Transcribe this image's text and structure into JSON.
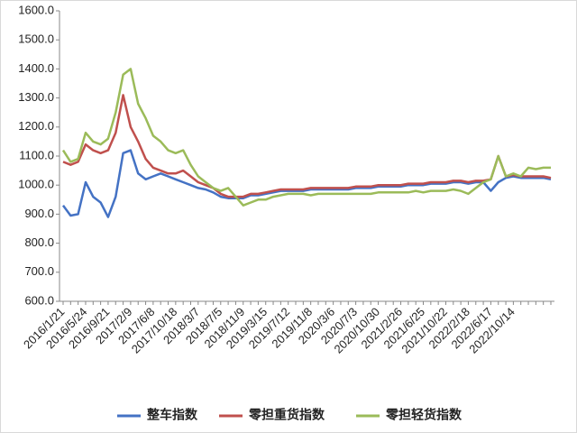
{
  "chart_data": {
    "type": "line",
    "categories": [
      "2016/1/21",
      null,
      null,
      "2016/5/24",
      null,
      null,
      "2016/9/21",
      null,
      null,
      "2017/2/9",
      null,
      null,
      "2017/6/8",
      null,
      null,
      "2017/10/18",
      null,
      null,
      "2018/3/7",
      null,
      null,
      "2018/7/5",
      null,
      null,
      "2018/11/9",
      null,
      null,
      "2019/3/15",
      null,
      null,
      "2019/7/12",
      null,
      null,
      "2019/11/8",
      null,
      null,
      "2020/3/6",
      null,
      null,
      "2020/7/3",
      null,
      null,
      "2020/10/30",
      null,
      null,
      "2021/2/26",
      null,
      null,
      "2021/6/25",
      null,
      null,
      "2021/10/22",
      null,
      null,
      "2022/2/18",
      null,
      null,
      "2022/6/17",
      null,
      null,
      "2022/10/14",
      null,
      null,
      null,
      null,
      null
    ],
    "series": [
      {
        "name": "整车指数",
        "color": "#4472c4",
        "values": [
          930,
          895,
          900,
          1010,
          960,
          940,
          890,
          960,
          1110,
          1120,
          1040,
          1020,
          1030,
          1040,
          1030,
          1020,
          1010,
          1000,
          990,
          985,
          975,
          960,
          955,
          955,
          955,
          965,
          965,
          970,
          975,
          980,
          980,
          980,
          980,
          985,
          985,
          985,
          985,
          985,
          985,
          990,
          990,
          990,
          995,
          995,
          995,
          995,
          1000,
          1000,
          1000,
          1005,
          1005,
          1005,
          1010,
          1010,
          1005,
          1010,
          1010,
          980,
          1010,
          1025,
          1030,
          1025,
          1025,
          1025,
          1025,
          1020
        ]
      },
      {
        "name": "零担重货指数",
        "color": "#c0504d",
        "values": [
          1080,
          1070,
          1080,
          1140,
          1120,
          1110,
          1120,
          1180,
          1310,
          1200,
          1150,
          1090,
          1060,
          1050,
          1040,
          1040,
          1050,
          1030,
          1010,
          1000,
          990,
          970,
          960,
          960,
          960,
          970,
          970,
          975,
          980,
          985,
          985,
          985,
          985,
          990,
          990,
          990,
          990,
          990,
          990,
          995,
          995,
          995,
          1000,
          1000,
          1000,
          1000,
          1005,
          1005,
          1005,
          1010,
          1010,
          1010,
          1015,
          1015,
          1010,
          1015,
          1015,
          1020,
          1100,
          1030,
          1035,
          1030,
          1030,
          1030,
          1030,
          1025
        ]
      },
      {
        "name": "零担轻货指数",
        "color": "#9bbb59",
        "values": [
          1120,
          1080,
          1090,
          1180,
          1150,
          1140,
          1160,
          1250,
          1380,
          1400,
          1280,
          1230,
          1170,
          1150,
          1120,
          1110,
          1120,
          1070,
          1030,
          1010,
          990,
          980,
          990,
          960,
          930,
          940,
          950,
          950,
          960,
          965,
          970,
          970,
          970,
          965,
          970,
          970,
          970,
          970,
          970,
          970,
          970,
          970,
          975,
          975,
          975,
          975,
          975,
          980,
          975,
          980,
          980,
          980,
          985,
          980,
          970,
          990,
          1010,
          1020,
          1100,
          1030,
          1040,
          1030,
          1060,
          1055,
          1060,
          1060
        ]
      }
    ],
    "ylim": [
      600,
      1600
    ],
    "yticks": [
      {
        "value": 600,
        "label": "600.0"
      },
      {
        "value": 700,
        "label": "700.0"
      },
      {
        "value": 800,
        "label": "800.0"
      },
      {
        "value": 900,
        "label": "900.0"
      },
      {
        "value": 1000,
        "label": "1000.0"
      },
      {
        "value": 1100,
        "label": "1100.0"
      },
      {
        "value": 1200,
        "label": "1200.0"
      },
      {
        "value": 1300,
        "label": "1300.0"
      },
      {
        "value": 1400,
        "label": "1400.0"
      },
      {
        "value": 1500,
        "label": "1500.0"
      },
      {
        "value": 1600,
        "label": "1600.0"
      }
    ],
    "grid": false,
    "legend": "bottom"
  }
}
